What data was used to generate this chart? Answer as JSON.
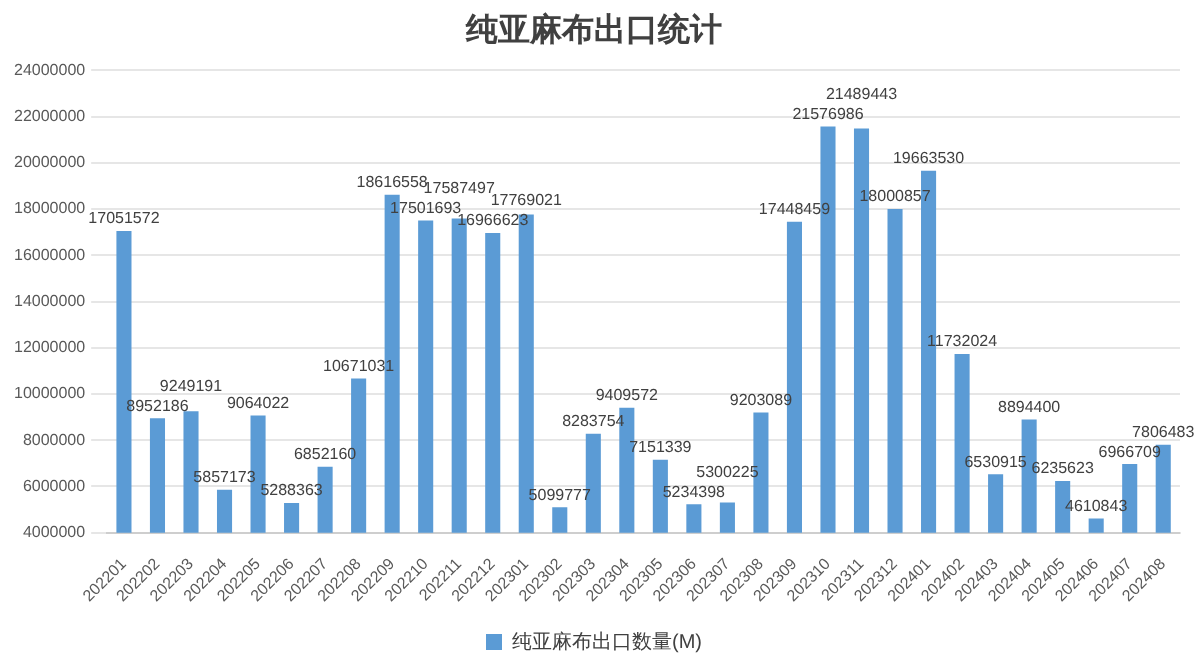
{
  "chart_data": {
    "type": "bar",
    "title": "纯亚麻布出口统计",
    "categories": [
      "202201",
      "202202",
      "202203",
      "202204",
      "202205",
      "202206",
      "202207",
      "202208",
      "202209",
      "202210",
      "202211",
      "202212",
      "202301",
      "202302",
      "202303",
      "202304",
      "202305",
      "202306",
      "202307",
      "202308",
      "202309",
      "202310",
      "202311",
      "202312",
      "202401",
      "202402",
      "202403",
      "202404",
      "202405",
      "202406",
      "202407",
      "202408"
    ],
    "series": [
      {
        "name": "纯亚麻布出口数量(M)",
        "color": "#5b9bd5",
        "values": [
          17051572,
          8952186,
          9249191,
          5857173,
          9064022,
          5288363,
          6852160,
          10671031,
          18616558,
          17501693,
          17587497,
          16966623,
          17769021,
          5099777,
          8283754,
          9409572,
          7151339,
          5234398,
          5300225,
          9203089,
          17448459,
          21576986,
          21489443,
          18000857,
          19663530,
          11732024,
          6530915,
          8894400,
          6235623,
          4610843,
          6966709,
          7806483
        ]
      }
    ],
    "ylim": [
      4000000,
      24000000
    ],
    "yticks": [
      4000000,
      6000000,
      8000000,
      10000000,
      12000000,
      14000000,
      16000000,
      18000000,
      20000000,
      22000000,
      24000000
    ],
    "grid": "y",
    "legend": "bottom",
    "data_labels": true
  }
}
